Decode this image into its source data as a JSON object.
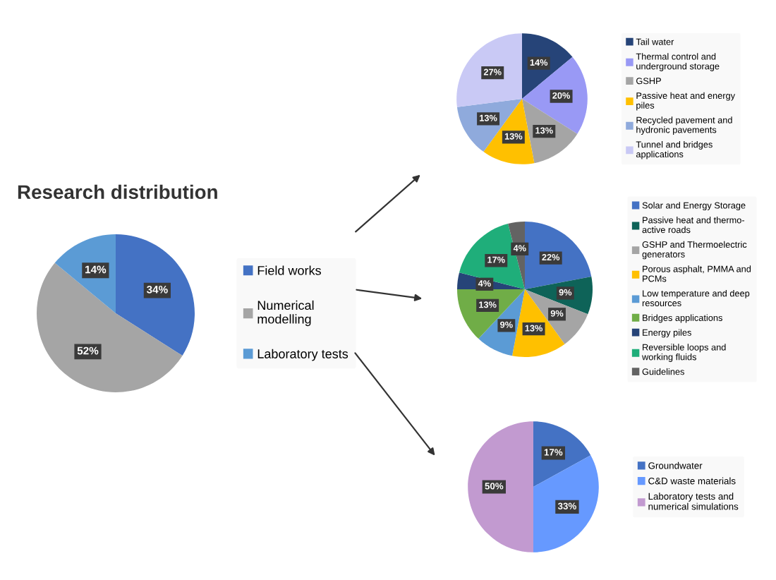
{
  "chart_data": [
    {
      "type": "pie",
      "title": "Research distribution",
      "categories": [
        "Field works",
        "Numerical\nmodelling",
        "Laboratory tests"
      ],
      "values": [
        34,
        52,
        14
      ],
      "value_labels": [
        "34%",
        "52%",
        "14%"
      ],
      "colors": [
        "#4472c4",
        "#a5a5a5",
        "#5b9bd5"
      ],
      "legend": "right"
    },
    {
      "type": "pie",
      "categories": [
        "Tail water",
        "Thermal control and\nunderground storage",
        "GSHP",
        "Passive heat and energy\npiles",
        "Recycled pavement and\nhydronic pavements",
        "Tunnel and bridges\napplications"
      ],
      "values": [
        14,
        20,
        13,
        13,
        13,
        27
      ],
      "value_labels": [
        "14%",
        "20%",
        "13%",
        "13%",
        "13%",
        "27%"
      ],
      "colors": [
        "#264478",
        "#9999f5",
        "#a5a5a5",
        "#ffc000",
        "#8faadc",
        "#c9c9f5"
      ],
      "legend": "right"
    },
    {
      "type": "pie",
      "categories": [
        "Solar and Energy Storage",
        "Passive heat and thermo-\nactive roads",
        "GSHP and Thermoelectric\ngenerators",
        "Porous asphalt, PMMA and\nPCMs",
        "Low temperature and deep\nresources",
        "Bridges applications",
        "Energy piles",
        "Reversible loops and\nworking fluids",
        "Guidelines"
      ],
      "values": [
        22,
        9,
        9,
        13,
        9,
        13,
        4,
        17,
        4
      ],
      "value_labels": [
        "22%",
        "9%",
        "9%",
        "13%",
        "9%",
        "13%",
        "4%",
        "17%",
        "4%"
      ],
      "colors": [
        "#4472c4",
        "#0e6358",
        "#a5a5a5",
        "#ffc000",
        "#5b9bd5",
        "#70ad47",
        "#264478",
        "#1fae7a",
        "#636363"
      ],
      "legend": "right"
    },
    {
      "type": "pie",
      "categories": [
        "Groundwater",
        "C&D waste materials",
        "Laboratory tests and\nnumerical simulations"
      ],
      "values": [
        17,
        33,
        50
      ],
      "value_labels": [
        "17%",
        "33%",
        "50%"
      ],
      "colors": [
        "#4472c4",
        "#6699ff",
        "#c29ad0"
      ],
      "legend": "right"
    }
  ]
}
